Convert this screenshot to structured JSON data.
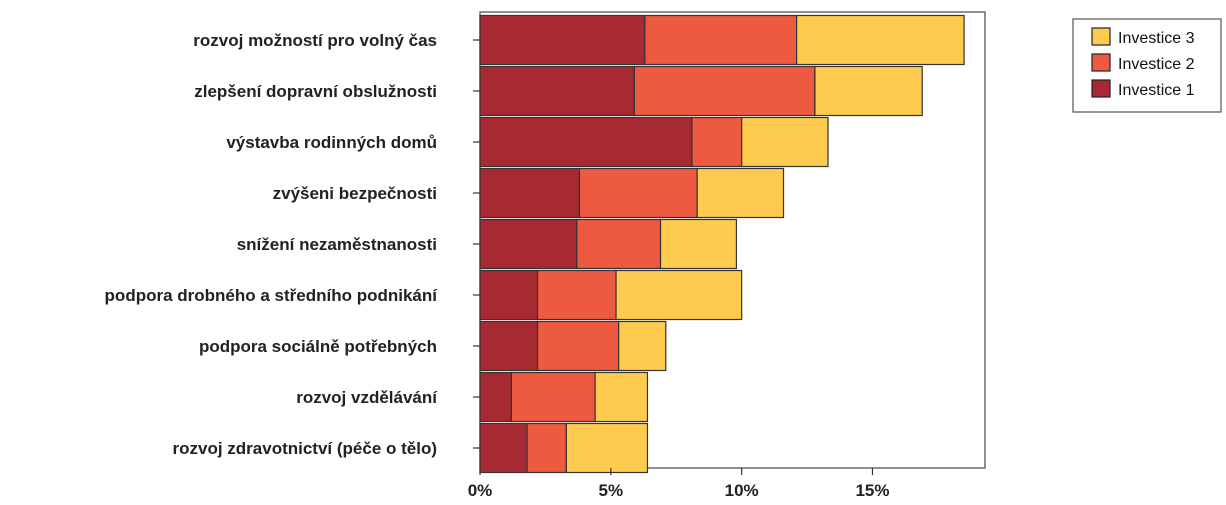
{
  "chart_data": {
    "type": "bar",
    "orientation": "horizontal",
    "stacked": true,
    "title": "",
    "xlabel": "",
    "ylabel": "",
    "xlim": [
      0,
      19.3
    ],
    "x_ticks": [
      0,
      5,
      10,
      15
    ],
    "x_tick_labels": [
      "0%",
      "5%",
      "10%",
      "15%"
    ],
    "grid": false,
    "legend_position": "top-right",
    "categories": [
      "rozvoj možností pro volný čas",
      "zlepšení dopravní obslužnosti",
      "výstavba rodinných domů",
      "zvýšeni bezpečnosti",
      "snížení nezaměstnanosti",
      "podpora drobného a středního podnikání",
      "podpora sociálně potřebných",
      "rozvoj vzdělávání",
      "rozvoj zdravotnictví (péče o tělo)"
    ],
    "series": [
      {
        "name": "Investice 1",
        "color": "#a72a32",
        "values": [
          6.3,
          5.9,
          8.1,
          3.8,
          3.7,
          2.2,
          2.2,
          1.2,
          1.8
        ]
      },
      {
        "name": "Investice 2",
        "color": "#ee5a40",
        "values": [
          5.8,
          6.9,
          1.9,
          4.5,
          3.2,
          3.0,
          3.1,
          3.2,
          1.5
        ]
      },
      {
        "name": "Investice 3",
        "color": "#fecb4f",
        "values": [
          6.4,
          4.1,
          3.3,
          3.3,
          2.9,
          4.8,
          1.8,
          2.0,
          3.1
        ]
      }
    ],
    "legend_order": [
      "Investice 3",
      "Investice 2",
      "Investice 1"
    ]
  }
}
